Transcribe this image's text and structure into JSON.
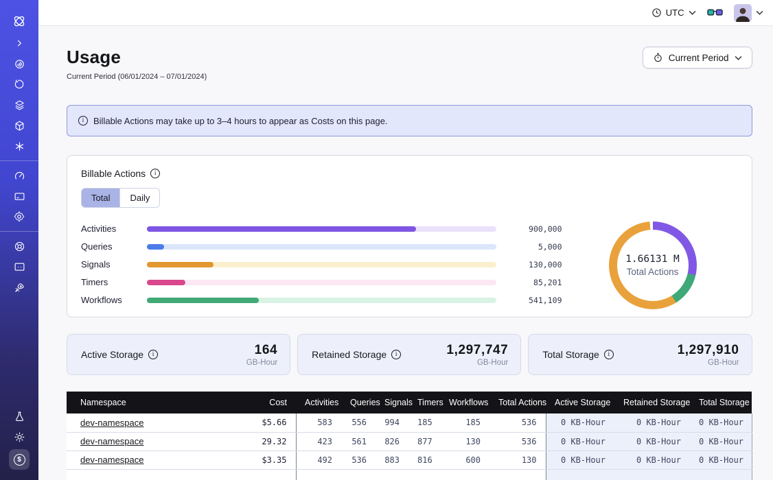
{
  "topbar": {
    "timezone": "UTC"
  },
  "sidebar": {
    "icons": [
      "temporal-logo",
      "collapse-chevron",
      "namespaces-swirl",
      "history",
      "layers",
      "cube",
      "asterisk",
      "gauge",
      "billing-card",
      "settings-gear",
      "support-lifebuoy",
      "feedback-monitor",
      "getting-started-rocket",
      "labs-flask",
      "theme-sun",
      "usage-coin"
    ]
  },
  "page": {
    "title": "Usage",
    "subtitle": "Current Period (06/01/2024 – 07/01/2024)",
    "period_button": "Current Period"
  },
  "banner": {
    "text": "Billable Actions may take up to 3–4 hours to appear as Costs on this page."
  },
  "billable": {
    "title": "Billable Actions",
    "tabs": [
      "Total",
      "Daily"
    ],
    "active_tab": "Total"
  },
  "chart_data": [
    {
      "type": "bar",
      "orientation": "horizontal",
      "title": "Billable Actions",
      "categories": [
        "Activities",
        "Queries",
        "Signals",
        "Timers",
        "Workflows"
      ],
      "values": [
        900000,
        5000,
        130000,
        85201,
        541109
      ],
      "display_values": [
        "900,000",
        "5,000",
        "130,000",
        "85,201",
        "541,109"
      ],
      "fill_percent": [
        77,
        5,
        19,
        11,
        32
      ],
      "bar_colors": [
        "#7e56e3",
        "#4a7de8",
        "#e2972f",
        "#d9488d",
        "#41a976"
      ],
      "track_colors": [
        "#eae2fb",
        "#dbe6fa",
        "#fbf0cd",
        "#fce7f3",
        "#d8f3e3"
      ]
    },
    {
      "type": "pie",
      "subtype": "donut",
      "center_value": "1.66131 M",
      "center_label": "Total Actions",
      "segments": [
        {
          "name": "activities",
          "color": "#8158e6",
          "start_deg": 0,
          "end_deg": 103
        },
        {
          "name": "workflows",
          "color": "#3fa878",
          "start_deg": 103,
          "end_deg": 148
        },
        {
          "name": "other-actions",
          "color": "#e9a23b",
          "start_deg": 148,
          "end_deg": 356
        },
        {
          "name": "gap",
          "color": "#ffffff",
          "start_deg": 356,
          "end_deg": 360
        }
      ]
    }
  ],
  "storage_cards": [
    {
      "label": "Active Storage",
      "value": "164",
      "unit": "GB-Hour"
    },
    {
      "label": "Retained Storage",
      "value": "1,297,747",
      "unit": "GB-Hour"
    },
    {
      "label": "Total Storage",
      "value": "1,297,910",
      "unit": "GB-Hour"
    }
  ],
  "table": {
    "headers": [
      "Namespace",
      "Cost",
      "Activities",
      "Queries",
      "Signals",
      "Timers",
      "Workflows",
      "Total Actions",
      "Active Storage",
      "Retained Storage",
      "Total Storage"
    ],
    "rows": [
      {
        "namespace": "dev-namespace",
        "cost": "$5.66",
        "activities": "583",
        "queries": "556",
        "signals": "994",
        "timers": "185",
        "workflows": "185",
        "total_actions": "536",
        "active_storage": "0 KB-Hour",
        "retained_storage": "0 KB-Hour",
        "total_storage": "0 KB-Hour"
      },
      {
        "namespace": "dev-namespace",
        "cost": "29.32",
        "activities": "423",
        "queries": "561",
        "signals": "826",
        "timers": "877",
        "workflows": "130",
        "total_actions": "536",
        "active_storage": "0 KB-Hour",
        "retained_storage": "0 KB-Hour",
        "total_storage": "0 KB-Hour"
      },
      {
        "namespace": "dev-namespace",
        "cost": "$3.35",
        "activities": "492",
        "queries": "536",
        "signals": "883",
        "timers": "816",
        "workflows": "600",
        "total_actions": "130",
        "active_storage": "0 KB-Hour",
        "retained_storage": "0 KB-Hour",
        "total_storage": "0 KB-Hour"
      }
    ]
  }
}
